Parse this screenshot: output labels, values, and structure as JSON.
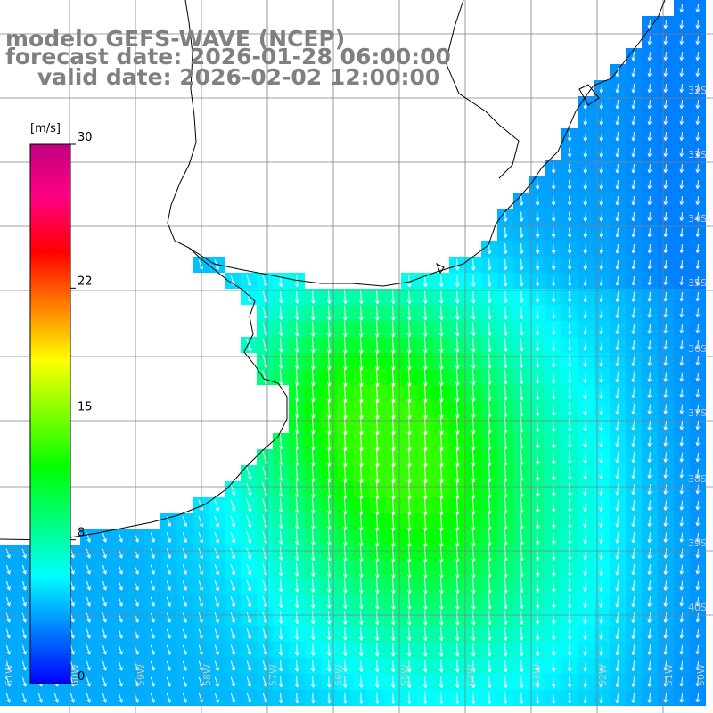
{
  "title": {
    "line1": "modelo GEFS-WAVE (NCEP)",
    "line2": "forecast date: 2026-01-28 06:00:00",
    "line3": "valid date: 2026-02-02 12:00:00"
  },
  "colorbar": {
    "unit": "[m/s]",
    "min": 0,
    "max": 30,
    "ticks": [
      {
        "value": 30,
        "label": "30"
      },
      {
        "value": 22,
        "label": "22"
      },
      {
        "value": 15,
        "label": "15"
      },
      {
        "value": 8,
        "label": "8"
      },
      {
        "value": 0,
        "label": "0"
      }
    ],
    "colors": [
      "#0000ff",
      "#0080ff",
      "#00ffff",
      "#00ff80",
      "#00ff00",
      "#80ff00",
      "#ffff00",
      "#ff8000",
      "#ff0000",
      "#ff0080",
      "#c0007f"
    ]
  },
  "latitude_labels": [
    "32S",
    "33S",
    "34S",
    "35S",
    "36S",
    "37S",
    "38S",
    "39S",
    "40S"
  ],
  "longitude_labels": [
    "61W",
    "60W",
    "59W",
    "58W",
    "57W",
    "56W",
    "55W",
    "54W",
    "53W",
    "52W",
    "51W",
    "50W"
  ],
  "colors": {
    "land": "#ffffff",
    "coastline": "#000000",
    "grid": "#808080",
    "arrow": "#ffffff",
    "title": "#808080"
  },
  "field": {
    "variable": "wind speed",
    "unit": "m/s",
    "range": [
      3,
      13
    ],
    "arrow_direction": "from north (pointing south)"
  }
}
